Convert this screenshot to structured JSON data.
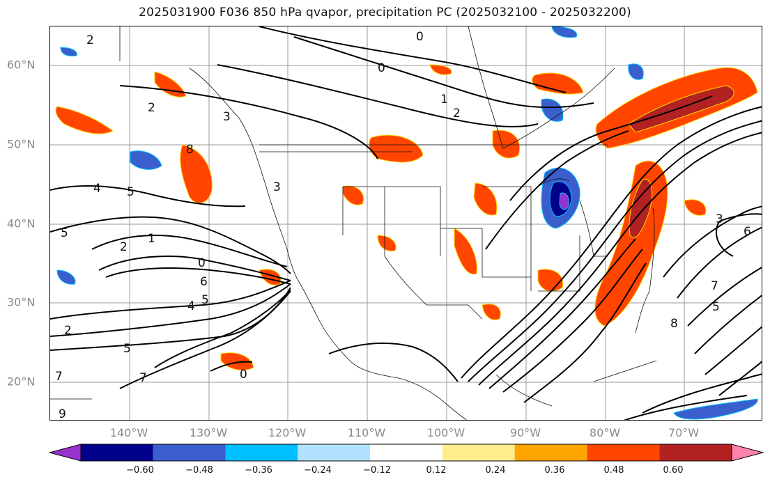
{
  "title": "2025031900 F036 850 hPa qvapor, precipitation PC (2025032100 - 2025032200)",
  "lat_labels": [
    "60°N",
    "50°N",
    "40°N",
    "30°N",
    "20°N"
  ],
  "lon_labels": [
    "140°W",
    "130°W",
    "120°W",
    "110°W",
    "100°W",
    "90°W",
    "80°W",
    "70°W"
  ],
  "colorbar": {
    "ticks": [
      "−0.60",
      "−0.48",
      "−0.36",
      "−0.24",
      "−0.12",
      "0.12",
      "0.24",
      "0.36",
      "0.48",
      "0.60"
    ],
    "colors": [
      "#9932cc",
      "#00008b",
      "#3a5fcd",
      "#00bfff",
      "#b0e2ff",
      "#ffffff",
      "#ffec8b",
      "#ffa500",
      "#ff4500",
      "#b22222",
      "#ff82ab"
    ]
  },
  "contour_labels": [
    "0",
    "2",
    "4",
    "5",
    "1",
    "0",
    "2",
    "3",
    "1",
    "2",
    "5",
    "8",
    "2",
    "0",
    "6",
    "5",
    "4",
    "2",
    "5",
    "7",
    "9",
    "7",
    "0",
    "3",
    "8",
    "5",
    "7",
    "3",
    "6"
  ]
}
